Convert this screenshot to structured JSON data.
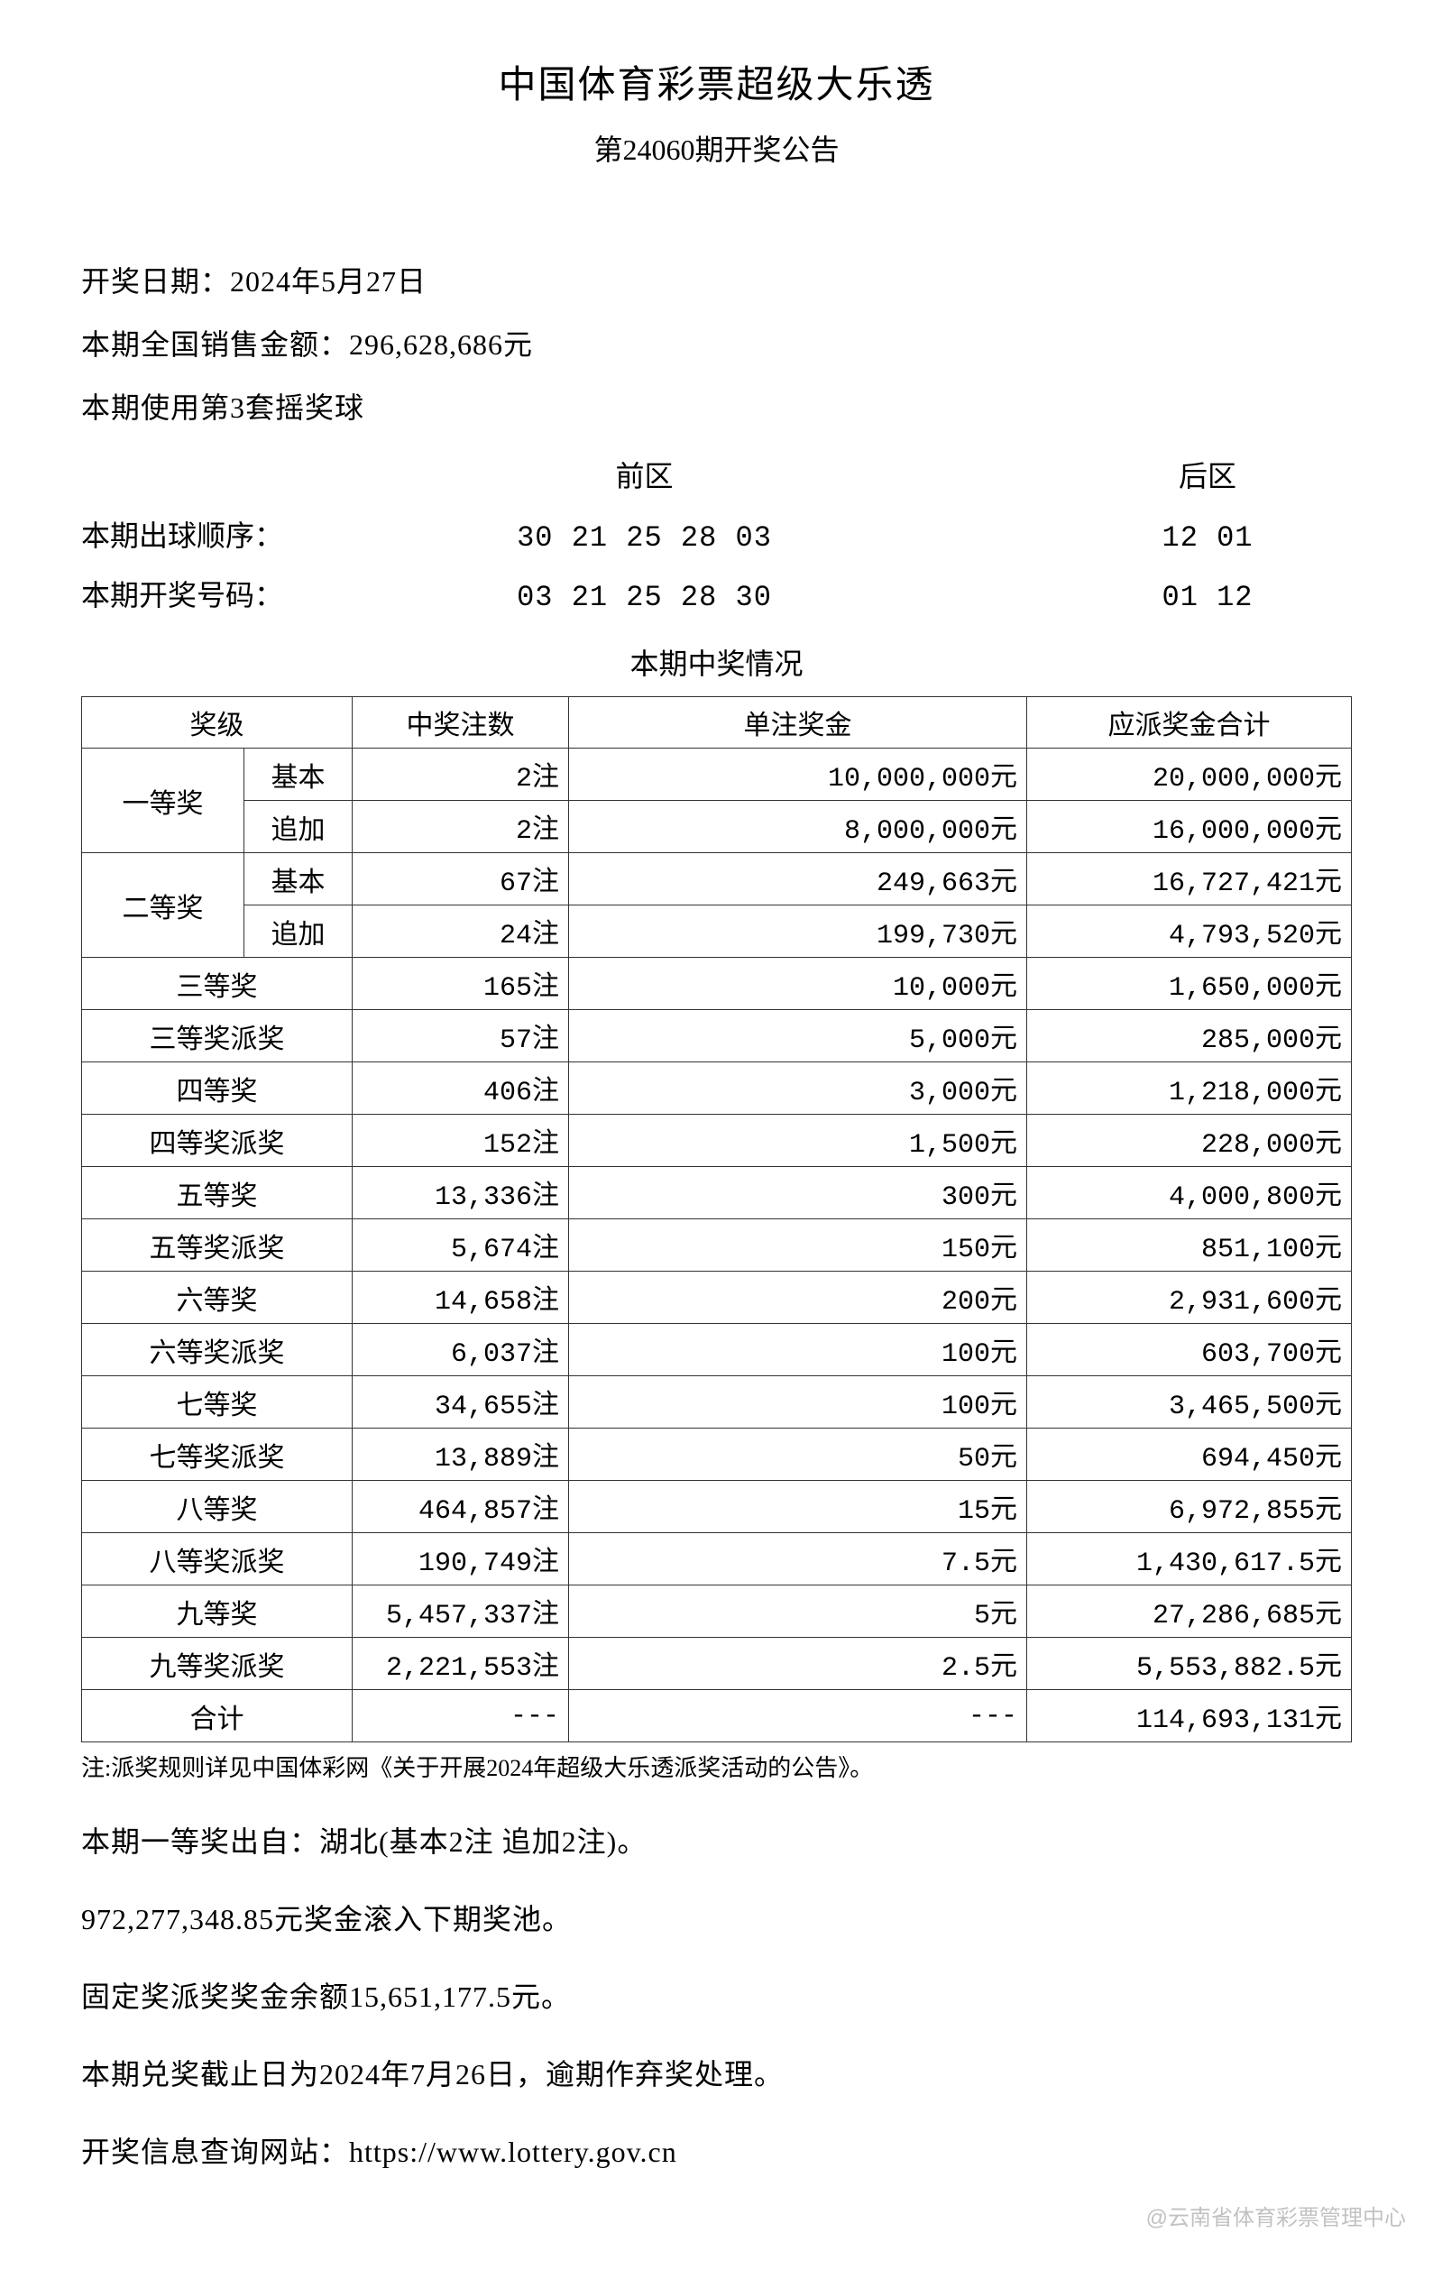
{
  "header": {
    "title": "中国体育彩票超级大乐透",
    "subtitle": "第24060期开奖公告"
  },
  "info": {
    "draw_date": "开奖日期：2024年5月27日",
    "sales": "本期全国销售金额：296,628,686元",
    "ball_set": "本期使用第3套摇奖球"
  },
  "zones": {
    "front_label": "前区",
    "back_label": "后区",
    "order_label": "本期出球顺序：",
    "order_front": "30 21 25 28 03",
    "order_back": "12 01",
    "winning_label": "本期开奖号码：",
    "winning_front": "03 21 25 28 30",
    "winning_back": "01 12"
  },
  "prize_title": "本期中奖情况",
  "table": {
    "headers": {
      "tier": "奖级",
      "count": "中奖注数",
      "per_prize": "单注奖金",
      "total": "应派奖金合计"
    },
    "rows": [
      {
        "tier_main": "一等奖",
        "tier_sub": "基本",
        "rowspan": 2,
        "count": "2注",
        "per": "10,000,000元",
        "total": "20,000,000元"
      },
      {
        "tier_sub": "追加",
        "count": "2注",
        "per": "8,000,000元",
        "total": "16,000,000元"
      },
      {
        "tier_main": "二等奖",
        "tier_sub": "基本",
        "rowspan": 2,
        "count": "67注",
        "per": "249,663元",
        "total": "16,727,421元"
      },
      {
        "tier_sub": "追加",
        "count": "24注",
        "per": "199,730元",
        "total": "4,793,520元"
      },
      {
        "tier_single": "三等奖",
        "count": "165注",
        "per": "10,000元",
        "total": "1,650,000元"
      },
      {
        "tier_single": "三等奖派奖",
        "count": "57注",
        "per": "5,000元",
        "total": "285,000元"
      },
      {
        "tier_single": "四等奖",
        "count": "406注",
        "per": "3,000元",
        "total": "1,218,000元"
      },
      {
        "tier_single": "四等奖派奖",
        "count": "152注",
        "per": "1,500元",
        "total": "228,000元"
      },
      {
        "tier_single": "五等奖",
        "count": "13,336注",
        "per": "300元",
        "total": "4,000,800元"
      },
      {
        "tier_single": "五等奖派奖",
        "count": "5,674注",
        "per": "150元",
        "total": "851,100元"
      },
      {
        "tier_single": "六等奖",
        "count": "14,658注",
        "per": "200元",
        "total": "2,931,600元"
      },
      {
        "tier_single": "六等奖派奖",
        "count": "6,037注",
        "per": "100元",
        "total": "603,700元"
      },
      {
        "tier_single": "七等奖",
        "count": "34,655注",
        "per": "100元",
        "total": "3,465,500元"
      },
      {
        "tier_single": "七等奖派奖",
        "count": "13,889注",
        "per": "50元",
        "total": "694,450元"
      },
      {
        "tier_single": "八等奖",
        "count": "464,857注",
        "per": "15元",
        "total": "6,972,855元"
      },
      {
        "tier_single": "八等奖派奖",
        "count": "190,749注",
        "per": "7.5元",
        "total": "1,430,617.5元"
      },
      {
        "tier_single": "九等奖",
        "count": "5,457,337注",
        "per": "5元",
        "total": "27,286,685元"
      },
      {
        "tier_single": "九等奖派奖",
        "count": "2,221,553注",
        "per": "2.5元",
        "total": "5,553,882.5元"
      },
      {
        "tier_single": "合计",
        "count": "---",
        "per": "---",
        "total": "114,693,131元"
      }
    ]
  },
  "note": "注:派奖规则详见中国体彩网《关于开展2024年超级大乐透派奖活动的公告》。",
  "footer": {
    "line1": "本期一等奖出自：湖北(基本2注 追加2注)。",
    "line2": "972,277,348.85元奖金滚入下期奖池。",
    "line3": "固定奖派奖奖金余额15,651,177.5元。",
    "line4": "本期兑奖截止日为2024年7月26日，逾期作弃奖处理。",
    "line5": "开奖信息查询网站：https://www.lottery.gov.cn"
  },
  "watermark": "@云南省体育彩票管理中心"
}
